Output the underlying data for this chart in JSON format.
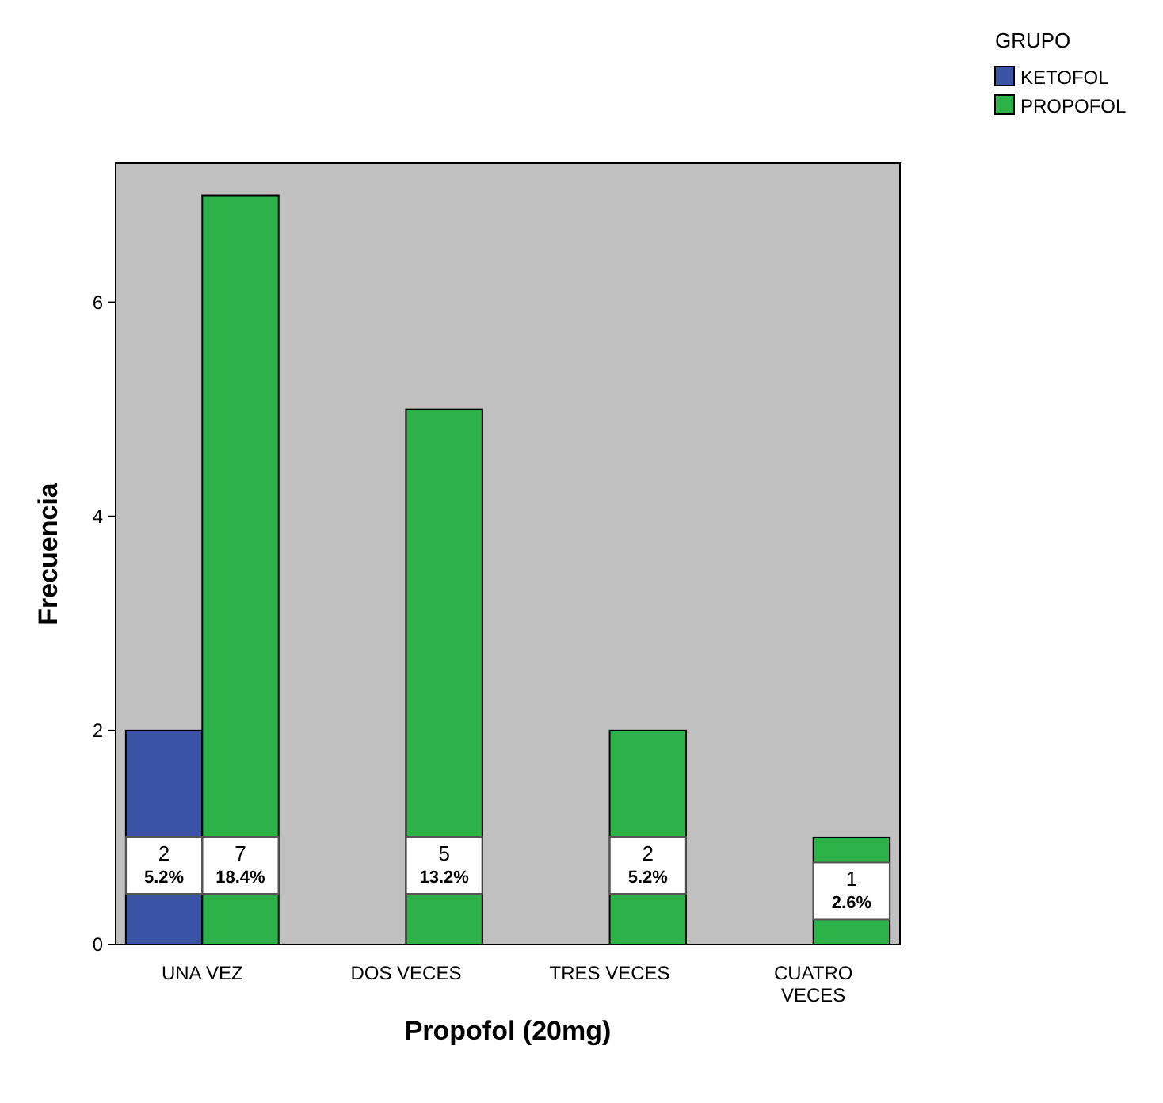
{
  "chart_data": {
    "type": "bar",
    "xlabel": "Propofol (20mg)",
    "ylabel": "Frecuencia",
    "legend_title": "GRUPO",
    "legend": "top right",
    "grid": false,
    "categories": [
      "UNA VEZ",
      "DOS VECES",
      "TRES VECES",
      "CUATRO VECES"
    ],
    "ylim": [
      0,
      7.3
    ],
    "yticks": [
      0,
      2,
      4,
      6
    ],
    "series": [
      {
        "name": "KETOFOL",
        "color": "#3a53a4",
        "values": [
          2,
          null,
          null,
          null
        ],
        "value_labels": [
          "2 5.2%",
          null,
          null,
          null
        ]
      },
      {
        "name": "PROPOFOL",
        "color": "#2db24a",
        "values": [
          7,
          5,
          2,
          1
        ],
        "value_labels": [
          "7 18.4%",
          "5 13.2%",
          "2 5.2%",
          "1 2.6%"
        ]
      }
    ]
  }
}
